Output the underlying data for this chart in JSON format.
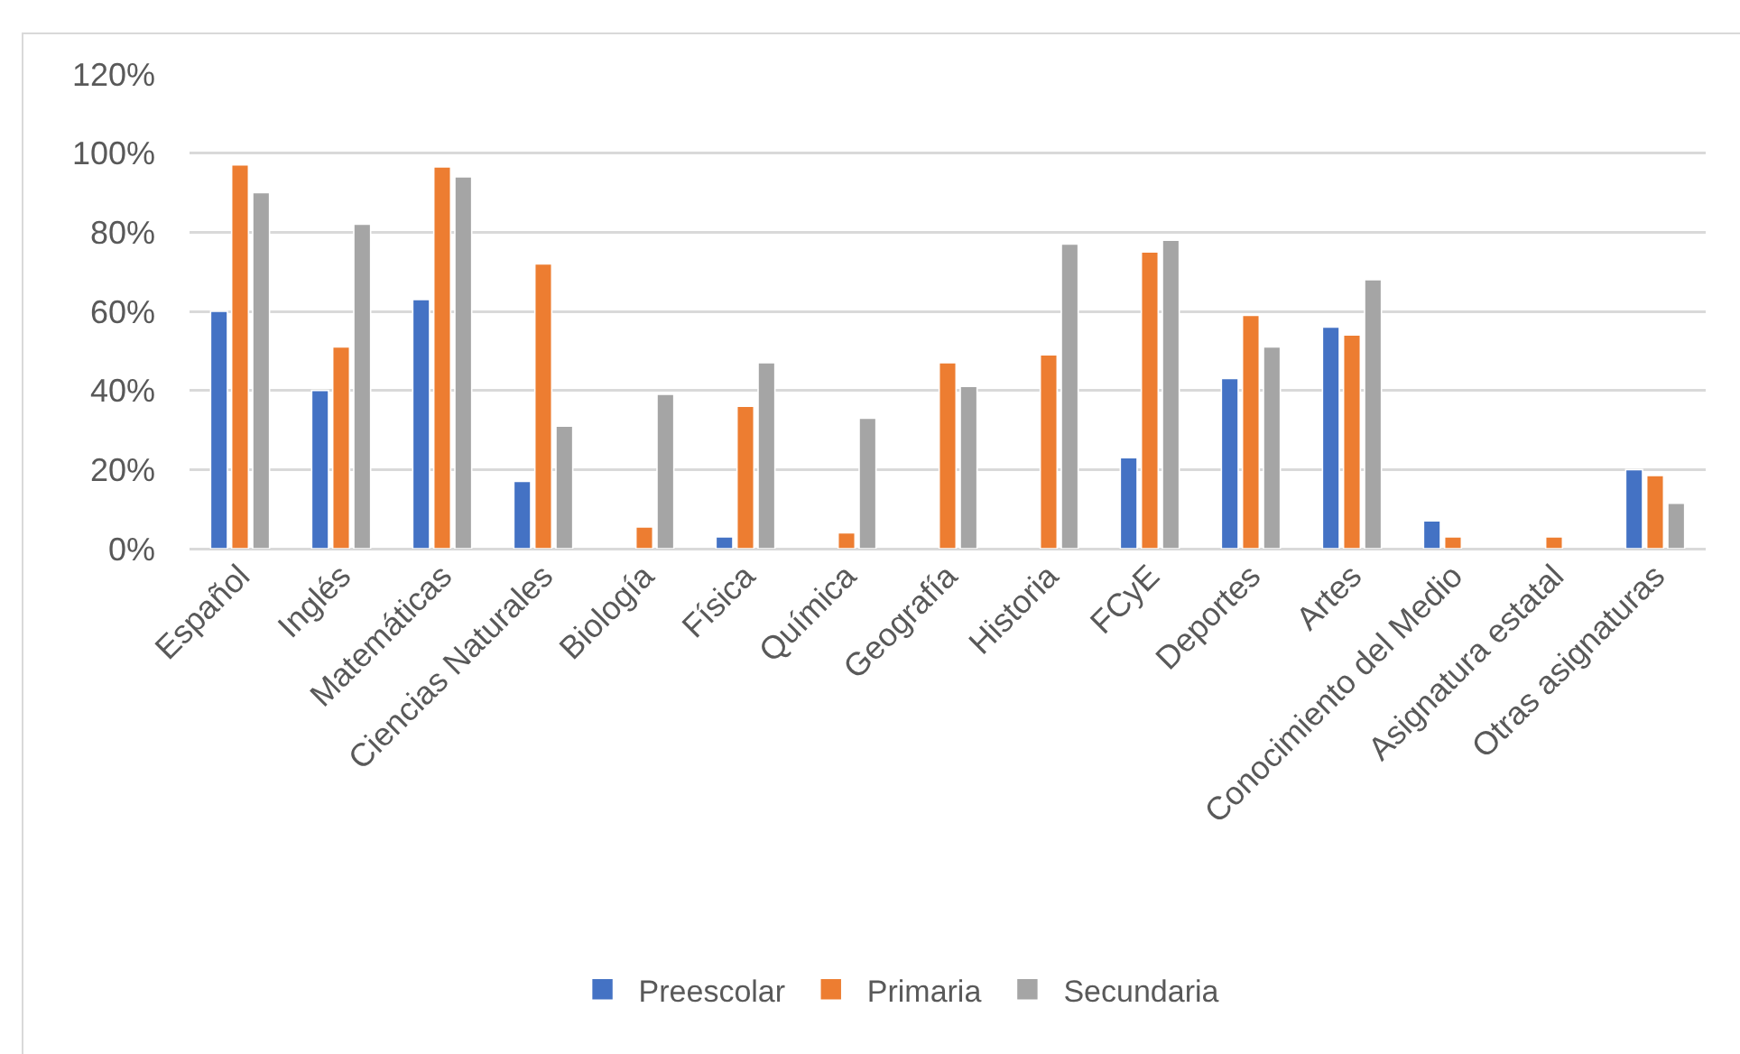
{
  "chart_data": {
    "type": "bar",
    "categories": [
      "Español",
      "Inglés",
      "Matemáticas",
      "Ciencias Naturales",
      "Biología",
      "Física",
      "Química",
      "Geografía",
      "Historia",
      "FCyE",
      "Deportes",
      "Artes",
      "Conocimiento del Medio",
      "Asignatura estatal",
      "Otras asignaturas"
    ],
    "series": [
      {
        "name": "Preescolar",
        "color": "#4472c4",
        "values": [
          60,
          40,
          63,
          17,
          null,
          3,
          null,
          null,
          null,
          23,
          43,
          56,
          7,
          null,
          20
        ]
      },
      {
        "name": "Primaria",
        "color": "#ed7d31",
        "values": [
          97,
          51,
          96.5,
          72,
          5.5,
          36,
          4,
          47,
          49,
          75,
          59,
          54,
          3,
          3,
          18.5
        ]
      },
      {
        "name": "Secundaria",
        "color": "#a5a5a5",
        "values": [
          90,
          82,
          94,
          31,
          39,
          47,
          33,
          41,
          77,
          78,
          51,
          68,
          null,
          null,
          11.5
        ]
      }
    ],
    "ylim": [
      0,
      120
    ],
    "yticks": [
      {
        "value": 0,
        "label": "0%"
      },
      {
        "value": 20,
        "label": "20%"
      },
      {
        "value": 40,
        "label": "40%"
      },
      {
        "value": 60,
        "label": "60%"
      },
      {
        "value": 80,
        "label": "80%"
      },
      {
        "value": 100,
        "label": "100%"
      },
      {
        "value": 120,
        "label": "120%"
      }
    ],
    "grid": "y",
    "legend": "bottom"
  }
}
